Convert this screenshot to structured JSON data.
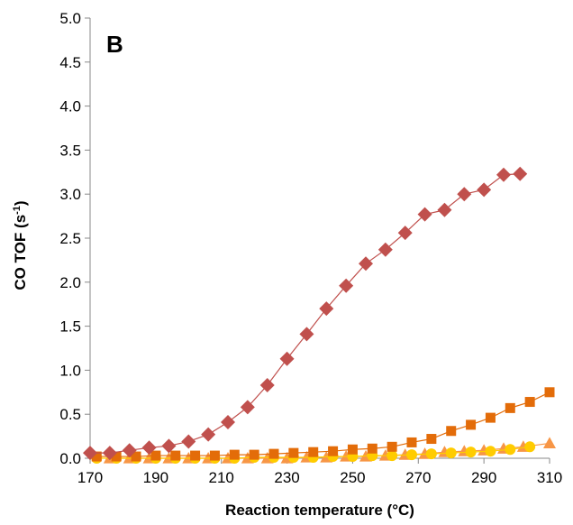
{
  "chart_data": {
    "type": "scatter",
    "panel_label": "B",
    "xlabel": "Reaction temperature (°C)",
    "ylabel_main": "CO TOF (s",
    "ylabel_sup": "-1",
    "ylabel_end": ")",
    "xlim": [
      170,
      310
    ],
    "ylim": [
      0,
      5.0
    ],
    "xticks": [
      "170",
      "190",
      "210",
      "230",
      "250",
      "270",
      "290",
      "310"
    ],
    "yticks": [
      "0.0",
      "0.5",
      "1.0",
      "1.5",
      "2.0",
      "2.5",
      "3.0",
      "3.5",
      "4.0",
      "4.5",
      "5.0"
    ],
    "grid": false,
    "series": [
      {
        "marker": "diamond",
        "color": "#c0504d",
        "x": [
          170,
          176,
          182,
          188,
          194,
          200,
          206,
          212,
          218,
          224,
          230,
          236,
          242,
          248,
          254,
          260,
          266,
          272,
          278,
          284,
          290,
          296,
          301
        ],
        "y": [
          0.06,
          0.06,
          0.09,
          0.12,
          0.14,
          0.19,
          0.27,
          0.41,
          0.58,
          0.83,
          1.13,
          1.41,
          1.7,
          1.96,
          2.21,
          2.37,
          2.56,
          2.77,
          2.82,
          3.0,
          3.05,
          3.22,
          3.23
        ]
      },
      {
        "marker": "square",
        "color": "#e36c09",
        "x": [
          172,
          178,
          184,
          190,
          196,
          202,
          208,
          214,
          220,
          226,
          232,
          238,
          244,
          250,
          256,
          262,
          268,
          274,
          280,
          286,
          292,
          298,
          304,
          310
        ],
        "y": [
          0.02,
          0.02,
          0.02,
          0.03,
          0.03,
          0.03,
          0.03,
          0.04,
          0.04,
          0.05,
          0.06,
          0.07,
          0.08,
          0.1,
          0.11,
          0.13,
          0.18,
          0.22,
          0.31,
          0.38,
          0.46,
          0.57,
          0.64,
          0.75
        ]
      },
      {
        "marker": "circle",
        "color": "#ffcc00",
        "x": [
          172,
          178,
          184,
          190,
          196,
          202,
          208,
          214,
          220,
          226,
          232,
          238,
          244,
          250,
          256,
          262,
          268,
          274,
          280,
          286,
          292,
          298,
          304
        ],
        "y": [
          0.0,
          0.0,
          0.0,
          0.0,
          0.0,
          0.0,
          0.0,
          0.0,
          0.01,
          0.01,
          0.01,
          0.01,
          0.02,
          0.02,
          0.03,
          0.03,
          0.04,
          0.05,
          0.06,
          0.07,
          0.08,
          0.1,
          0.13
        ]
      },
      {
        "marker": "triangle",
        "color": "#f79646",
        "x": [
          176,
          182,
          188,
          194,
          200,
          206,
          212,
          218,
          224,
          230,
          236,
          242,
          248,
          254,
          260,
          266,
          272,
          278,
          284,
          290,
          296,
          302,
          310
        ],
        "y": [
          0.0,
          0.0,
          0.0,
          0.0,
          0.0,
          0.0,
          0.0,
          0.0,
          0.0,
          0.0,
          0.01,
          0.01,
          0.02,
          0.02,
          0.03,
          0.04,
          0.05,
          0.07,
          0.08,
          0.09,
          0.11,
          0.13,
          0.17
        ]
      }
    ]
  }
}
